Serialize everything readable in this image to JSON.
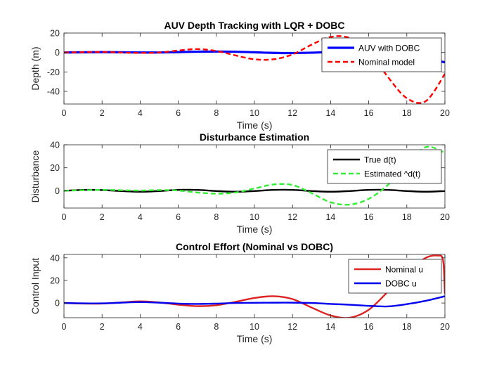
{
  "chart_data": [
    {
      "type": "line",
      "title": "AUV Depth Tracking with LQR + DOBC",
      "xlabel": "Time (s)",
      "ylabel": "Depth (m)",
      "xlim": [
        0,
        20
      ],
      "ylim": [
        -53,
        20
      ],
      "xticks": [
        0,
        2,
        4,
        6,
        8,
        10,
        12,
        14,
        16,
        18,
        20
      ],
      "yticks": [
        -40,
        -20,
        0,
        20
      ],
      "grid": false,
      "legend_position": "top-right",
      "series": [
        {
          "name": "AUV with DOBC",
          "color": "#0000ff",
          "style": "solid",
          "x": [
            0,
            1,
            2,
            3,
            4,
            5,
            6,
            7,
            8,
            9,
            10,
            11,
            12,
            13,
            14,
            15,
            16,
            17,
            18,
            19,
            20
          ],
          "y": [
            0,
            0.2,
            0.4,
            0.2,
            0,
            0,
            0.4,
            0.8,
            1,
            0.8,
            0.2,
            -0.4,
            -0.6,
            -0.2,
            0.4,
            0.6,
            0,
            -1.5,
            -4,
            -7,
            -10
          ]
        },
        {
          "name": "Nominal model",
          "color": "#ff0000",
          "style": "dashed",
          "x": [
            0,
            1,
            2,
            3,
            4,
            5,
            6,
            7,
            8,
            9,
            10,
            11,
            12,
            13,
            14,
            15,
            16,
            17,
            18,
            19,
            20
          ],
          "y": [
            0,
            0.3,
            0.5,
            0,
            -0.5,
            0,
            2,
            3.5,
            1.5,
            -3,
            -7,
            -7,
            -2,
            8,
            16,
            15,
            2,
            -25,
            -47,
            -50,
            -22
          ]
        }
      ]
    },
    {
      "type": "line",
      "title": "Disturbance Estimation",
      "xlabel": "Time (s)",
      "ylabel": "Disturbance",
      "xlim": [
        0,
        20
      ],
      "ylim": [
        -15,
        40
      ],
      "xticks": [
        0,
        2,
        4,
        6,
        8,
        10,
        12,
        14,
        16,
        18,
        20
      ],
      "yticks": [
        0,
        20,
        40
      ],
      "grid": false,
      "legend_position": "top-right",
      "series": [
        {
          "name": "True d(t)",
          "color": "#000000",
          "style": "solid",
          "x": [
            0,
            1,
            2,
            3,
            4,
            5,
            6,
            7,
            8,
            9,
            10,
            11,
            12,
            13,
            14,
            15,
            16,
            17,
            18,
            19,
            20
          ],
          "y": [
            0,
            0.8,
            0.6,
            -0.2,
            -0.8,
            -0.2,
            0.8,
            0.8,
            -0.2,
            -0.8,
            -0.2,
            0.8,
            0.8,
            -0.2,
            -0.8,
            -0.2,
            0.8,
            0.8,
            -0.2,
            -0.8,
            -0.2
          ]
        },
        {
          "name": "Estimated ^d(t)",
          "color": "#33ee33",
          "style": "dashed",
          "x": [
            0,
            1,
            2,
            3,
            4,
            5,
            6,
            7,
            8,
            9,
            10,
            11,
            12,
            13,
            14,
            15,
            16,
            17,
            18,
            19,
            20
          ],
          "y": [
            0,
            0.5,
            0.8,
            0.5,
            0.2,
            0.6,
            0.2,
            -1.5,
            -2.5,
            -1.5,
            2,
            5.5,
            5,
            -2,
            -10,
            -12,
            -7,
            5,
            22,
            38,
            33
          ]
        }
      ]
    },
    {
      "type": "line",
      "title": "Control Effort (Nominal vs DOBC)",
      "xlabel": "Time (s)",
      "ylabel": "Control Input",
      "xlim": [
        0,
        20
      ],
      "ylim": [
        -13,
        43
      ],
      "xticks": [
        0,
        2,
        4,
        6,
        8,
        10,
        12,
        14,
        16,
        18,
        20
      ],
      "yticks": [
        0,
        20,
        40
      ],
      "grid": false,
      "legend_position": "top-right",
      "series": [
        {
          "name": "Nominal u",
          "color": "#dd2222",
          "style": "solid",
          "x": [
            0,
            1,
            2,
            3,
            4,
            5,
            6,
            7,
            8,
            9,
            10,
            11,
            12,
            13,
            14,
            15,
            16,
            17,
            18,
            19,
            19.6,
            19.9,
            20
          ],
          "y": [
            0,
            -0.5,
            -0.5,
            0.5,
            1.5,
            0.5,
            -1.5,
            -2.8,
            -2,
            1,
            4.5,
            6,
            3.5,
            -4,
            -11,
            -13,
            -6,
            10,
            28,
            40,
            42,
            38,
            8
          ]
        },
        {
          "name": "DOBC u",
          "color": "#0000ee",
          "style": "solid",
          "x": [
            0,
            1,
            2,
            3,
            4,
            5,
            6,
            7,
            8,
            9,
            10,
            11,
            12,
            13,
            14,
            15,
            16,
            17,
            18,
            19,
            20
          ],
          "y": [
            0,
            -0.3,
            -0.3,
            0.3,
            0.8,
            0.3,
            -0.5,
            -0.8,
            -0.5,
            0,
            0.2,
            0.3,
            0.3,
            0,
            -0.8,
            -1.5,
            -2.5,
            -3,
            -1,
            2,
            6
          ]
        }
      ]
    }
  ]
}
